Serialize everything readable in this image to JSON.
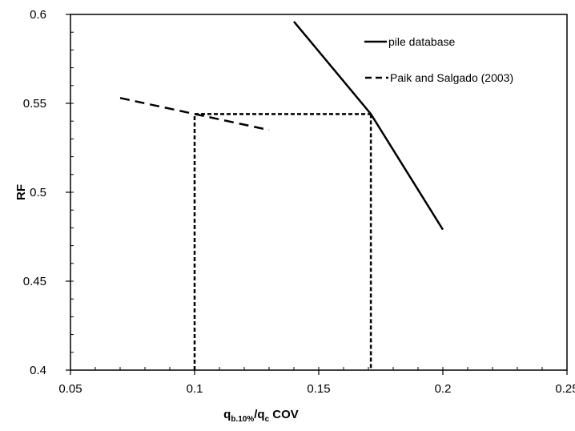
{
  "chart_data": {
    "type": "line",
    "xlabel": {
      "main": "q",
      "sub1": "b.10%",
      "mid": "/q",
      "sub2": "c",
      "tail": " COV"
    },
    "ylabel": "RF",
    "xlim": [
      0.05,
      0.25
    ],
    "ylim": [
      0.4,
      0.6
    ],
    "x_ticks": [
      "0.05",
      "0.1",
      "0.15",
      "0.2",
      "0.25"
    ],
    "y_ticks": [
      "0.4",
      "0.45",
      "0.5",
      "0.55",
      "0.6"
    ],
    "x_minor_step": 0.01,
    "y_minor_step": 0.01,
    "grid": false,
    "legend_position": "top-right",
    "series": [
      {
        "name": "pile database",
        "style": "solid",
        "color": "#000000",
        "x": [
          0.14,
          0.171,
          0.2
        ],
        "y": [
          0.596,
          0.544,
          0.479
        ]
      },
      {
        "name": "Paik and Salgado (2003)",
        "style": "dashed",
        "color": "#000000",
        "x": [
          0.07,
          0.13
        ],
        "y": [
          0.553,
          0.535
        ]
      }
    ],
    "reference_lines": {
      "style": "dotted",
      "color": "#000000",
      "segments": [
        {
          "x": [
            0.1,
            0.1
          ],
          "y": [
            0.4,
            0.544
          ]
        },
        {
          "x": [
            0.1,
            0.171
          ],
          "y": [
            0.544,
            0.544
          ]
        },
        {
          "x": [
            0.171,
            0.171
          ],
          "y": [
            0.544,
            0.4
          ]
        }
      ]
    }
  }
}
